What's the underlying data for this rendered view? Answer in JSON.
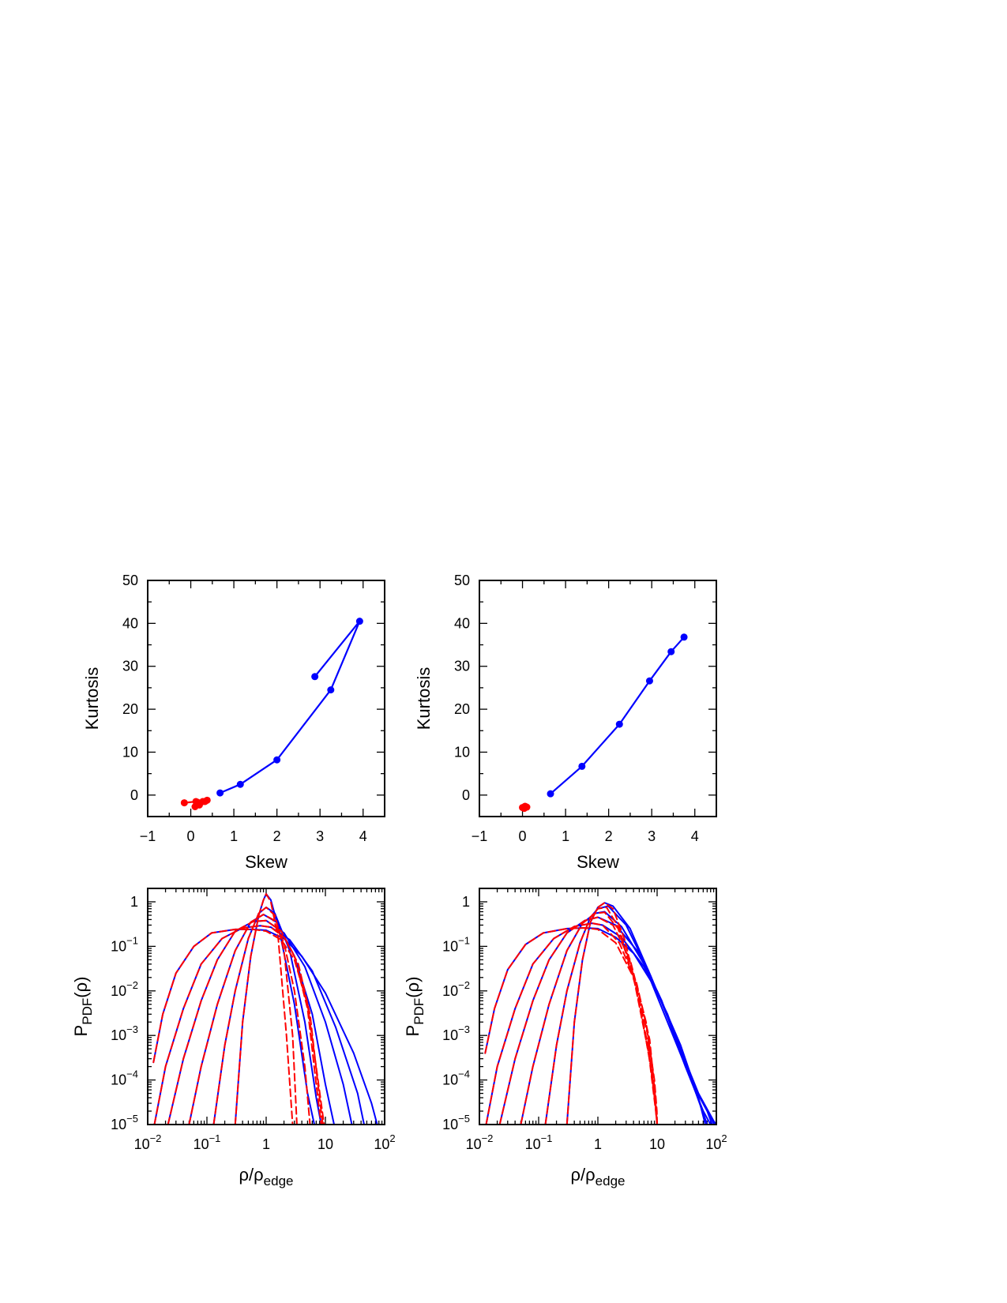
{
  "chart_data": [
    {
      "type": "line",
      "panel": "top-left",
      "xlabel": "Skew",
      "ylabel": "Kurtosis",
      "xlim": [
        -1,
        4.5
      ],
      "ylim": [
        -5,
        50
      ],
      "xticks": [
        -1,
        0,
        1,
        2,
        3,
        4
      ],
      "yticks": [
        0,
        10,
        20,
        30,
        40,
        50
      ],
      "xtick_labels": [
        "−1",
        "0",
        "1",
        "2",
        "3",
        "4"
      ],
      "ytick_labels": [
        "0",
        "10",
        "20",
        "30",
        "40",
        "50"
      ],
      "markers": true,
      "series": [
        {
          "color": "#0000ff",
          "x": [
            0.68,
            1.15,
            2.0,
            3.25,
            3.92,
            2.88
          ],
          "y": [
            0.5,
            2.5,
            8.2,
            24.5,
            40.5,
            27.6
          ]
        },
        {
          "color": "#ff0000",
          "x": [
            -0.15,
            0.12,
            0.28,
            0.38,
            0.33,
            0.2,
            0.1,
            0.16
          ],
          "y": [
            -1.8,
            -1.5,
            -1.5,
            -1.2,
            -1.5,
            -2.3,
            -2.7,
            -1.7
          ]
        }
      ]
    },
    {
      "type": "line",
      "panel": "top-right",
      "xlabel": "Skew",
      "ylabel": "Kurtosis",
      "xlim": [
        -1,
        4.5
      ],
      "ylim": [
        -5,
        50
      ],
      "xticks": [
        -1,
        0,
        1,
        2,
        3,
        4
      ],
      "yticks": [
        0,
        10,
        20,
        30,
        40,
        50
      ],
      "xtick_labels": [
        "−1",
        "0",
        "1",
        "2",
        "3",
        "4"
      ],
      "ytick_labels": [
        "0",
        "10",
        "20",
        "30",
        "40",
        "50"
      ],
      "markers": true,
      "series": [
        {
          "color": "#0000ff",
          "x": [
            0.65,
            1.38,
            2.25,
            2.95,
            3.45,
            3.75
          ],
          "y": [
            0.3,
            6.7,
            16.5,
            26.6,
            33.4,
            36.8
          ]
        },
        {
          "color": "#ff0000",
          "x": [
            0.0,
            0.06,
            0.1,
            0.04
          ],
          "y": [
            -2.9,
            -2.6,
            -2.8,
            -3.1
          ]
        }
      ]
    },
    {
      "type": "line",
      "panel": "bottom-left",
      "xlabel_main": "ρ/ρ",
      "xlabel_sub": "edge",
      "ylabel_main": "P",
      "ylabel_sub": "PDF",
      "ylabel_tail": "(ρ)",
      "xscale": "log",
      "yscale": "log",
      "xlim": [
        0.01,
        100
      ],
      "ylim": [
        1e-05,
        2
      ],
      "xticks": [
        0.01,
        0.1,
        1,
        10,
        100
      ],
      "yticks": [
        1,
        0.1,
        0.01,
        0.001,
        0.0001,
        1e-05
      ],
      "xtick_labels": [
        {
          "base": "10",
          "exp": "−2"
        },
        {
          "base": "10",
          "exp": "−1"
        },
        {
          "base": "1",
          "exp": ""
        },
        {
          "base": "10",
          "exp": ""
        },
        {
          "base": "10",
          "exp": "2"
        }
      ],
      "ytick_labels": [
        {
          "base": "1",
          "exp": ""
        },
        {
          "base": "10",
          "exp": "−1"
        },
        {
          "base": "10",
          "exp": "−2"
        },
        {
          "base": "10",
          "exp": "−3"
        },
        {
          "base": "10",
          "exp": "−4"
        },
        {
          "base": "10",
          "exp": "−5"
        }
      ],
      "series": [
        {
          "color": "#0000ff",
          "x": [
            0.0125,
            0.018,
            0.03,
            0.06,
            0.12,
            0.3,
            0.6,
            1.0,
            2.0,
            4.0,
            10.0,
            30.0,
            60.0,
            75.0
          ],
          "y": [
            0.00025,
            0.003,
            0.025,
            0.1,
            0.2,
            0.24,
            0.24,
            0.23,
            0.15,
            0.06,
            0.009,
            0.0004,
            3e-05,
            1e-05
          ]
        },
        {
          "color": "#0000ff",
          "x": [
            0.013,
            0.02,
            0.04,
            0.08,
            0.18,
            0.4,
            0.8,
            1.2,
            2.5,
            6.0,
            15.0,
            35.0,
            45.0
          ],
          "y": [
            1e-05,
            0.0002,
            0.004,
            0.04,
            0.15,
            0.26,
            0.29,
            0.27,
            0.14,
            0.028,
            0.0015,
            5e-05,
            1e-05
          ]
        },
        {
          "color": "#0000ff",
          "x": [
            0.022,
            0.04,
            0.08,
            0.15,
            0.3,
            0.6,
            1.0,
            2.0,
            4.5,
            10.0,
            20.0,
            28.0
          ],
          "y": [
            1e-05,
            0.0003,
            0.006,
            0.05,
            0.22,
            0.36,
            0.38,
            0.2,
            0.035,
            0.002,
            8e-05,
            1e-05
          ]
        },
        {
          "color": "#0000ff",
          "x": [
            0.05,
            0.08,
            0.15,
            0.3,
            0.55,
            0.9,
            1.5,
            3.0,
            6.0,
            10.0,
            14.0
          ],
          "y": [
            1e-05,
            0.0002,
            0.005,
            0.08,
            0.35,
            0.52,
            0.35,
            0.06,
            0.003,
            8e-05,
            1e-05
          ]
        },
        {
          "color": "#0000ff",
          "x": [
            0.13,
            0.2,
            0.3,
            0.5,
            0.75,
            1.0,
            1.4,
            2.5,
            4.5,
            7.0,
            8.5
          ],
          "y": [
            1e-05,
            0.0006,
            0.01,
            0.15,
            0.55,
            0.75,
            0.55,
            0.08,
            0.002,
            4e-05,
            1e-05
          ]
        },
        {
          "color": "#0000ff",
          "x": [
            0.3,
            0.4,
            0.55,
            0.75,
            0.9,
            1.0,
            1.2,
            1.7,
            3.0,
            5.0,
            6.5
          ],
          "y": [
            1e-05,
            0.002,
            0.06,
            0.5,
            1.1,
            1.5,
            1.1,
            0.2,
            0.005,
            5e-05,
            1e-05
          ]
        },
        {
          "color": "#ff0000",
          "dashed": true,
          "x": [
            0.0125,
            0.018,
            0.03,
            0.06,
            0.12,
            0.3,
            0.6,
            1.0,
            1.8,
            3.0,
            5.0,
            7.5,
            9.5
          ],
          "y": [
            0.00025,
            0.003,
            0.025,
            0.1,
            0.2,
            0.24,
            0.24,
            0.22,
            0.14,
            0.05,
            0.005,
            0.0001,
            1e-05
          ]
        },
        {
          "color": "#ff0000",
          "dashed": true,
          "x": [
            0.013,
            0.02,
            0.04,
            0.08,
            0.18,
            0.4,
            0.8,
            1.2,
            2.0,
            3.5,
            5.5,
            7.5,
            9.0
          ],
          "y": [
            1e-05,
            0.0002,
            0.004,
            0.04,
            0.15,
            0.26,
            0.29,
            0.27,
            0.16,
            0.04,
            0.003,
            8e-05,
            1e-05
          ]
        },
        {
          "color": "#ff0000",
          "dashed": true,
          "x": [
            0.022,
            0.04,
            0.08,
            0.15,
            0.3,
            0.6,
            1.0,
            1.8,
            3.0,
            5.0,
            7.0,
            8.5
          ],
          "y": [
            1e-05,
            0.0003,
            0.006,
            0.05,
            0.22,
            0.36,
            0.38,
            0.22,
            0.06,
            0.004,
            8e-05,
            1e-05
          ]
        },
        {
          "color": "#ff0000",
          "dashed": true,
          "x": [
            0.05,
            0.08,
            0.15,
            0.3,
            0.55,
            0.9,
            1.3,
            2.0,
            3.0,
            4.5,
            5.5
          ],
          "y": [
            1e-05,
            0.0002,
            0.005,
            0.08,
            0.35,
            0.52,
            0.4,
            0.12,
            0.01,
            0.0002,
            1e-05
          ]
        },
        {
          "color": "#ff0000",
          "dashed": true,
          "x": [
            0.13,
            0.2,
            0.3,
            0.5,
            0.75,
            1.0,
            1.4,
            2.0,
            2.8,
            3.3
          ],
          "y": [
            1e-05,
            0.0006,
            0.01,
            0.15,
            0.55,
            0.75,
            0.5,
            0.08,
            0.001,
            1e-05
          ]
        },
        {
          "color": "#ff0000",
          "dashed": true,
          "x": [
            0.3,
            0.4,
            0.55,
            0.75,
            0.9,
            1.0,
            1.2,
            1.6,
            2.2,
            2.8
          ],
          "y": [
            1e-05,
            0.002,
            0.06,
            0.5,
            1.1,
            1.5,
            1.0,
            0.15,
            0.001,
            1e-05
          ]
        }
      ]
    },
    {
      "type": "line",
      "panel": "bottom-right",
      "xlabel_main": "ρ/ρ",
      "xlabel_sub": "edge",
      "ylabel_main": "P",
      "ylabel_sub": "PDF",
      "ylabel_tail": "(ρ)",
      "xscale": "log",
      "yscale": "log",
      "xlim": [
        0.01,
        100
      ],
      "ylim": [
        1e-05,
        2
      ],
      "xticks": [
        0.01,
        0.1,
        1,
        10,
        100
      ],
      "yticks": [
        1,
        0.1,
        0.01,
        0.001,
        0.0001,
        1e-05
      ],
      "xtick_labels": [
        {
          "base": "10",
          "exp": "−2"
        },
        {
          "base": "10",
          "exp": "−1"
        },
        {
          "base": "1",
          "exp": ""
        },
        {
          "base": "10",
          "exp": ""
        },
        {
          "base": "10",
          "exp": "2"
        }
      ],
      "ytick_labels": [
        {
          "base": "1",
          "exp": ""
        },
        {
          "base": "10",
          "exp": "−1"
        },
        {
          "base": "10",
          "exp": "−2"
        },
        {
          "base": "10",
          "exp": "−3"
        },
        {
          "base": "10",
          "exp": "−4"
        },
        {
          "base": "10",
          "exp": "−5"
        }
      ],
      "series": [
        {
          "color": "#0000ff",
          "x": [
            0.0125,
            0.018,
            0.03,
            0.06,
            0.12,
            0.3,
            0.6,
            1.0,
            2.0,
            4.0,
            10.0,
            25.0,
            50.0,
            65.0
          ],
          "y": [
            0.0004,
            0.004,
            0.03,
            0.11,
            0.2,
            0.25,
            0.26,
            0.25,
            0.16,
            0.07,
            0.01,
            0.0006,
            4e-05,
            1e-05
          ]
        },
        {
          "color": "#0000ff",
          "x": [
            0.013,
            0.02,
            0.04,
            0.08,
            0.18,
            0.4,
            0.8,
            1.2,
            2.5,
            6.0,
            15.0,
            40.0,
            70.0
          ],
          "y": [
            1e-05,
            0.0002,
            0.004,
            0.04,
            0.15,
            0.28,
            0.33,
            0.3,
            0.16,
            0.035,
            0.003,
            8e-05,
            1e-05
          ]
        },
        {
          "color": "#0000ff",
          "x": [
            0.022,
            0.04,
            0.08,
            0.15,
            0.3,
            0.6,
            1.0,
            2.0,
            5.0,
            12.0,
            30.0,
            60.0,
            80.0
          ],
          "y": [
            1e-05,
            0.0003,
            0.006,
            0.05,
            0.2,
            0.38,
            0.45,
            0.3,
            0.07,
            0.006,
            0.0002,
            2e-05,
            1e-05
          ]
        },
        {
          "color": "#0000ff",
          "x": [
            0.05,
            0.08,
            0.15,
            0.3,
            0.55,
            0.9,
            1.3,
            2.5,
            6.0,
            15.0,
            40.0,
            70.0,
            85.0
          ],
          "y": [
            1e-05,
            0.0002,
            0.005,
            0.08,
            0.33,
            0.55,
            0.6,
            0.28,
            0.04,
            0.002,
            8e-05,
            2e-05,
            1e-05
          ]
        },
        {
          "color": "#0000ff",
          "x": [
            0.13,
            0.2,
            0.3,
            0.5,
            0.75,
            1.0,
            1.5,
            3.0,
            7.0,
            18.0,
            45.0,
            80.0,
            92.0
          ],
          "y": [
            1e-05,
            0.0006,
            0.01,
            0.12,
            0.45,
            0.7,
            0.8,
            0.3,
            0.03,
            0.0015,
            6e-05,
            1.5e-05,
            1e-05
          ]
        },
        {
          "color": "#0000ff",
          "x": [
            0.3,
            0.4,
            0.55,
            0.75,
            1.0,
            1.3,
            1.8,
            3.5,
            8.0,
            20.0,
            50.0,
            90.0,
            100.0
          ],
          "y": [
            1e-05,
            0.002,
            0.05,
            0.35,
            0.75,
            0.95,
            0.8,
            0.25,
            0.02,
            0.001,
            5e-05,
            1.2e-05,
            1e-05
          ]
        },
        {
          "color": "#ff0000",
          "dashed": true,
          "x": [
            0.0125,
            0.018,
            0.03,
            0.06,
            0.12,
            0.3,
            0.6,
            1.0,
            2.0,
            4.0,
            7.0,
            9.0,
            9.9,
            10.0
          ],
          "y": [
            0.0004,
            0.004,
            0.03,
            0.11,
            0.2,
            0.25,
            0.26,
            0.24,
            0.12,
            0.02,
            0.001,
            0.0001,
            2e-05,
            1e-05
          ]
        },
        {
          "color": "#ff0000",
          "dashed": true,
          "x": [
            0.013,
            0.02,
            0.04,
            0.08,
            0.18,
            0.4,
            0.8,
            1.2,
            2.3,
            4.5,
            7.5,
            9.2,
            10.0
          ],
          "y": [
            1e-05,
            0.0002,
            0.004,
            0.04,
            0.15,
            0.28,
            0.33,
            0.3,
            0.12,
            0.015,
            0.0008,
            5e-05,
            1e-05
          ]
        },
        {
          "color": "#ff0000",
          "dashed": true,
          "x": [
            0.022,
            0.04,
            0.08,
            0.15,
            0.3,
            0.6,
            1.0,
            1.8,
            3.5,
            6.5,
            9.0,
            10.0
          ],
          "y": [
            1e-05,
            0.0003,
            0.006,
            0.05,
            0.2,
            0.38,
            0.45,
            0.3,
            0.05,
            0.002,
            5e-05,
            1e-05
          ]
        },
        {
          "color": "#ff0000",
          "dashed": true,
          "x": [
            0.05,
            0.08,
            0.15,
            0.3,
            0.55,
            0.9,
            1.3,
            2.2,
            4.0,
            7.0,
            9.3,
            10.0
          ],
          "y": [
            1e-05,
            0.0002,
            0.005,
            0.08,
            0.33,
            0.55,
            0.58,
            0.25,
            0.02,
            0.0006,
            3e-05,
            1e-05
          ]
        },
        {
          "color": "#ff0000",
          "dashed": true,
          "x": [
            0.13,
            0.2,
            0.3,
            0.5,
            0.75,
            1.0,
            1.4,
            2.3,
            4.2,
            7.2,
            9.5,
            10.0
          ],
          "y": [
            1e-05,
            0.0006,
            0.01,
            0.12,
            0.45,
            0.7,
            0.75,
            0.25,
            0.015,
            0.0004,
            2e-05,
            1e-05
          ]
        },
        {
          "color": "#ff0000",
          "dashed": true,
          "x": [
            0.3,
            0.4,
            0.55,
            0.75,
            1.0,
            1.3,
            1.8,
            2.8,
            4.8,
            7.8,
            9.6,
            10.0
          ],
          "y": [
            1e-05,
            0.002,
            0.05,
            0.35,
            0.75,
            0.95,
            0.7,
            0.15,
            0.008,
            0.0002,
            2e-05,
            1e-05
          ]
        }
      ]
    }
  ]
}
